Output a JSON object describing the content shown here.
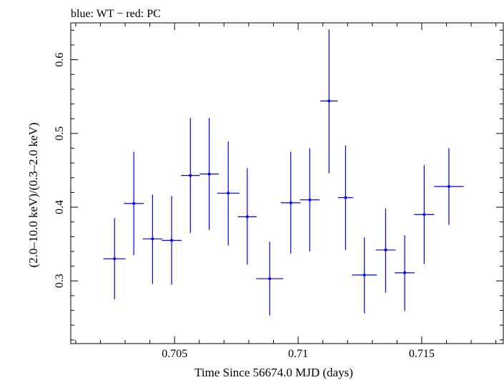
{
  "chart_data": {
    "type": "scatter",
    "title": "blue: WT − red: PC",
    "xlabel": "Time Since 56674.0 MJD (days)",
    "ylabel": "(2.0–10.0 keV)/(0.3–2.0 keV)",
    "xlim": [
      0.7008,
      0.7183
    ],
    "ylim": [
      0.215,
      0.65
    ],
    "x_ticks": [
      0.705,
      0.71,
      0.715
    ],
    "x_tick_labels": [
      "0.705",
      "0.71",
      "0.715"
    ],
    "y_ticks": [
      0.3,
      0.4,
      0.5,
      0.6
    ],
    "y_tick_labels": [
      "0.3",
      "0.4",
      "0.5",
      "0.6"
    ],
    "grid": false,
    "series": [
      {
        "color": "#0000ee",
        "points": [
          {
            "x": 0.70257,
            "xerr": 0.00045,
            "y": 0.33,
            "ylo": 0.275,
            "yhi": 0.385
          },
          {
            "x": 0.70335,
            "xerr": 0.0004,
            "y": 0.405,
            "ylo": 0.335,
            "yhi": 0.475
          },
          {
            "x": 0.70411,
            "xerr": 0.0004,
            "y": 0.357,
            "ylo": 0.296,
            "yhi": 0.417
          },
          {
            "x": 0.70488,
            "xerr": 0.0004,
            "y": 0.355,
            "ylo": 0.295,
            "yhi": 0.415
          },
          {
            "x": 0.70564,
            "xerr": 0.00038,
            "y": 0.443,
            "ylo": 0.365,
            "yhi": 0.521
          },
          {
            "x": 0.7064,
            "xerr": 0.00038,
            "y": 0.445,
            "ylo": 0.369,
            "yhi": 0.521
          },
          {
            "x": 0.70717,
            "xerr": 0.00045,
            "y": 0.419,
            "ylo": 0.348,
            "yhi": 0.489
          },
          {
            "x": 0.70794,
            "xerr": 0.00038,
            "y": 0.387,
            "ylo": 0.322,
            "yhi": 0.453
          },
          {
            "x": 0.70885,
            "xerr": 0.00055,
            "y": 0.303,
            "ylo": 0.253,
            "yhi": 0.353
          },
          {
            "x": 0.7097,
            "xerr": 0.0004,
            "y": 0.406,
            "ylo": 0.337,
            "yhi": 0.475
          },
          {
            "x": 0.71047,
            "xerr": 0.0004,
            "y": 0.41,
            "ylo": 0.34,
            "yhi": 0.48
          },
          {
            "x": 0.71125,
            "xerr": 0.00035,
            "y": 0.544,
            "ylo": 0.446,
            "yhi": 0.641
          },
          {
            "x": 0.71192,
            "xerr": 0.0003,
            "y": 0.413,
            "ylo": 0.342,
            "yhi": 0.484
          },
          {
            "x": 0.71268,
            "xerr": 0.0005,
            "y": 0.308,
            "ylo": 0.256,
            "yhi": 0.359
          },
          {
            "x": 0.71354,
            "xerr": 0.0004,
            "y": 0.342,
            "ylo": 0.284,
            "yhi": 0.398
          },
          {
            "x": 0.71431,
            "xerr": 0.0004,
            "y": 0.311,
            "ylo": 0.259,
            "yhi": 0.362
          },
          {
            "x": 0.7151,
            "xerr": 0.0004,
            "y": 0.39,
            "ylo": 0.323,
            "yhi": 0.457
          },
          {
            "x": 0.7161,
            "xerr": 0.0006,
            "y": 0.428,
            "ylo": 0.376,
            "yhi": 0.48
          }
        ]
      }
    ]
  }
}
